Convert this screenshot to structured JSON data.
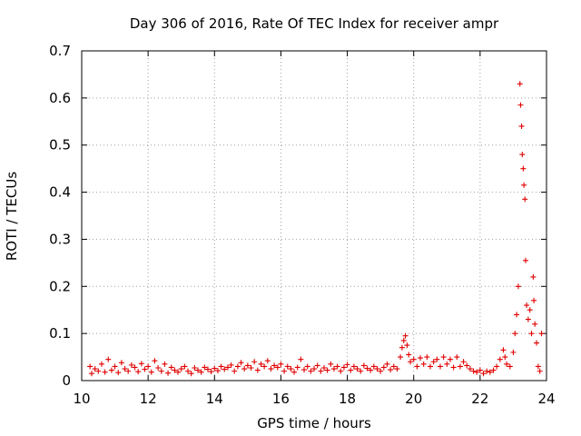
{
  "chart_data": {
    "type": "scatter",
    "title": "Day 306 of 2016, Rate Of TEC Index for receiver ampr",
    "xlabel": "GPS time / hours",
    "ylabel": "ROTI / TECUs",
    "xlim": [
      10,
      24
    ],
    "ylim": [
      0,
      0.7
    ],
    "xticks": [
      "10",
      "12",
      "14",
      "16",
      "18",
      "20",
      "22",
      "24"
    ],
    "yticks": [
      "0",
      "0.1",
      "0.2",
      "0.3",
      "0.4",
      "0.5",
      "0.6",
      "0.7"
    ],
    "grid": true,
    "marker": "plus",
    "marker_color": "#e00000",
    "series": [
      {
        "points": [
          [
            10.25,
            0.03
          ],
          [
            10.3,
            0.015
          ],
          [
            10.4,
            0.025
          ],
          [
            10.5,
            0.02
          ],
          [
            10.6,
            0.035
          ],
          [
            10.7,
            0.018
          ],
          [
            10.8,
            0.045
          ],
          [
            10.9,
            0.022
          ],
          [
            11.0,
            0.03
          ],
          [
            11.1,
            0.017
          ],
          [
            11.2,
            0.038
          ],
          [
            11.3,
            0.025
          ],
          [
            11.4,
            0.02
          ],
          [
            11.5,
            0.033
          ],
          [
            11.6,
            0.028
          ],
          [
            11.7,
            0.019
          ],
          [
            11.8,
            0.036
          ],
          [
            11.9,
            0.024
          ],
          [
            12.0,
            0.03
          ],
          [
            12.1,
            0.018
          ],
          [
            12.2,
            0.042
          ],
          [
            12.3,
            0.027
          ],
          [
            12.4,
            0.02
          ],
          [
            12.5,
            0.035
          ],
          [
            12.6,
            0.016
          ],
          [
            12.7,
            0.028
          ],
          [
            12.8,
            0.022
          ],
          [
            12.9,
            0.018
          ],
          [
            13.0,
            0.025
          ],
          [
            13.1,
            0.03
          ],
          [
            13.2,
            0.02
          ],
          [
            13.3,
            0.015
          ],
          [
            13.4,
            0.027
          ],
          [
            13.5,
            0.022
          ],
          [
            13.6,
            0.018
          ],
          [
            13.7,
            0.028
          ],
          [
            13.8,
            0.024
          ],
          [
            13.9,
            0.019
          ],
          [
            14.0,
            0.026
          ],
          [
            14.1,
            0.021
          ],
          [
            14.2,
            0.03
          ],
          [
            14.3,
            0.024
          ],
          [
            14.4,
            0.028
          ],
          [
            14.5,
            0.033
          ],
          [
            14.6,
            0.02
          ],
          [
            14.7,
            0.03
          ],
          [
            14.8,
            0.038
          ],
          [
            14.9,
            0.025
          ],
          [
            15.0,
            0.032
          ],
          [
            15.1,
            0.027
          ],
          [
            15.2,
            0.04
          ],
          [
            15.3,
            0.022
          ],
          [
            15.4,
            0.035
          ],
          [
            15.5,
            0.03
          ],
          [
            15.6,
            0.042
          ],
          [
            15.7,
            0.025
          ],
          [
            15.8,
            0.032
          ],
          [
            15.9,
            0.028
          ],
          [
            16.0,
            0.035
          ],
          [
            16.1,
            0.02
          ],
          [
            16.2,
            0.03
          ],
          [
            16.3,
            0.025
          ],
          [
            16.4,
            0.018
          ],
          [
            16.5,
            0.028
          ],
          [
            16.6,
            0.045
          ],
          [
            16.7,
            0.023
          ],
          [
            16.8,
            0.03
          ],
          [
            16.9,
            0.02
          ],
          [
            17.0,
            0.025
          ],
          [
            17.1,
            0.032
          ],
          [
            17.2,
            0.02
          ],
          [
            17.3,
            0.027
          ],
          [
            17.4,
            0.022
          ],
          [
            17.5,
            0.035
          ],
          [
            17.6,
            0.025
          ],
          [
            17.7,
            0.03
          ],
          [
            17.8,
            0.02
          ],
          [
            17.9,
            0.028
          ],
          [
            18.0,
            0.034
          ],
          [
            18.1,
            0.022
          ],
          [
            18.2,
            0.03
          ],
          [
            18.3,
            0.025
          ],
          [
            18.4,
            0.02
          ],
          [
            18.5,
            0.032
          ],
          [
            18.6,
            0.026
          ],
          [
            18.7,
            0.022
          ],
          [
            18.8,
            0.03
          ],
          [
            18.9,
            0.025
          ],
          [
            19.0,
            0.02
          ],
          [
            19.1,
            0.028
          ],
          [
            19.2,
            0.035
          ],
          [
            19.3,
            0.023
          ],
          [
            19.4,
            0.03
          ],
          [
            19.5,
            0.025
          ],
          [
            19.6,
            0.05
          ],
          [
            19.65,
            0.07
          ],
          [
            19.7,
            0.085
          ],
          [
            19.75,
            0.095
          ],
          [
            19.8,
            0.075
          ],
          [
            19.85,
            0.055
          ],
          [
            19.9,
            0.04
          ],
          [
            20.0,
            0.045
          ],
          [
            20.1,
            0.03
          ],
          [
            20.2,
            0.048
          ],
          [
            20.3,
            0.035
          ],
          [
            20.4,
            0.05
          ],
          [
            20.5,
            0.03
          ],
          [
            20.6,
            0.04
          ],
          [
            20.7,
            0.045
          ],
          [
            20.8,
            0.03
          ],
          [
            20.9,
            0.05
          ],
          [
            21.0,
            0.035
          ],
          [
            21.1,
            0.045
          ],
          [
            21.2,
            0.028
          ],
          [
            21.3,
            0.05
          ],
          [
            21.4,
            0.03
          ],
          [
            21.5,
            0.04
          ],
          [
            21.6,
            0.032
          ],
          [
            21.7,
            0.025
          ],
          [
            21.8,
            0.02
          ],
          [
            21.9,
            0.018
          ],
          [
            22.0,
            0.022
          ],
          [
            22.1,
            0.015
          ],
          [
            22.2,
            0.02
          ],
          [
            22.3,
            0.018
          ],
          [
            22.4,
            0.022
          ],
          [
            22.5,
            0.03
          ],
          [
            22.6,
            0.045
          ],
          [
            22.7,
            0.065
          ],
          [
            22.75,
            0.05
          ],
          [
            22.8,
            0.035
          ],
          [
            22.9,
            0.03
          ],
          [
            23.0,
            0.06
          ],
          [
            23.05,
            0.1
          ],
          [
            23.1,
            0.14
          ],
          [
            23.15,
            0.2
          ],
          [
            23.2,
            0.63
          ],
          [
            23.22,
            0.585
          ],
          [
            23.25,
            0.54
          ],
          [
            23.27,
            0.48
          ],
          [
            23.3,
            0.45
          ],
          [
            23.32,
            0.415
          ],
          [
            23.35,
            0.385
          ],
          [
            23.37,
            0.255
          ],
          [
            23.4,
            0.16
          ],
          [
            23.45,
            0.13
          ],
          [
            23.5,
            0.15
          ],
          [
            23.55,
            0.1
          ],
          [
            23.6,
            0.22
          ],
          [
            23.62,
            0.17
          ],
          [
            23.65,
            0.12
          ],
          [
            23.7,
            0.08
          ],
          [
            23.75,
            0.03
          ],
          [
            23.8,
            0.02
          ],
          [
            23.85,
            0.1
          ]
        ]
      }
    ]
  }
}
